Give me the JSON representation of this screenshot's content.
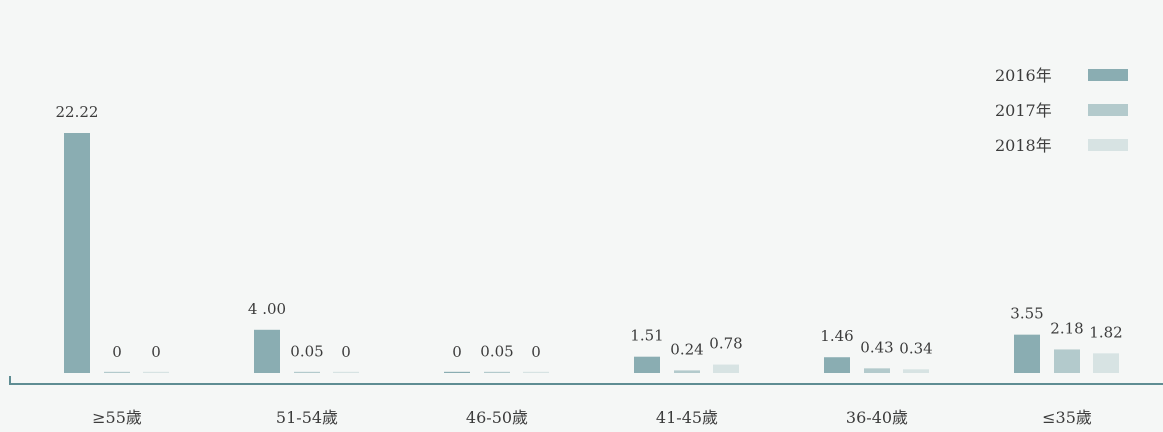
{
  "chart_data": {
    "type": "bar",
    "categories": [
      "≥55歲",
      "51-54歲",
      "46-50歲",
      "41-45歲",
      "36-40歲",
      "≤35歲"
    ],
    "series": [
      {
        "name": "2016年",
        "color": "#8aadb2",
        "values": [
          22.22,
          4.0,
          0,
          1.51,
          1.46,
          3.55
        ],
        "labels": [
          "22.22",
          "4 .00",
          "0",
          "1.51",
          "1.46",
          "3.55"
        ]
      },
      {
        "name": "2017年",
        "color": "#b3cacc",
        "values": [
          0,
          0.05,
          0.05,
          0.24,
          0.43,
          2.18
        ],
        "labels": [
          "0",
          "0.05",
          "0.05",
          "0.24",
          "0.43",
          "2.18"
        ]
      },
      {
        "name": "2018年",
        "color": "#d7e3e3",
        "values": [
          0,
          0,
          0,
          0.78,
          0.34,
          1.82
        ],
        "labels": [
          "0",
          "0",
          "0",
          "0.78",
          "0.34",
          "1.82"
        ]
      }
    ],
    "ylim": [
      0,
      22.22
    ],
    "legend_position": "top-right",
    "axis_color": "#5f8d93",
    "grid": false
  }
}
